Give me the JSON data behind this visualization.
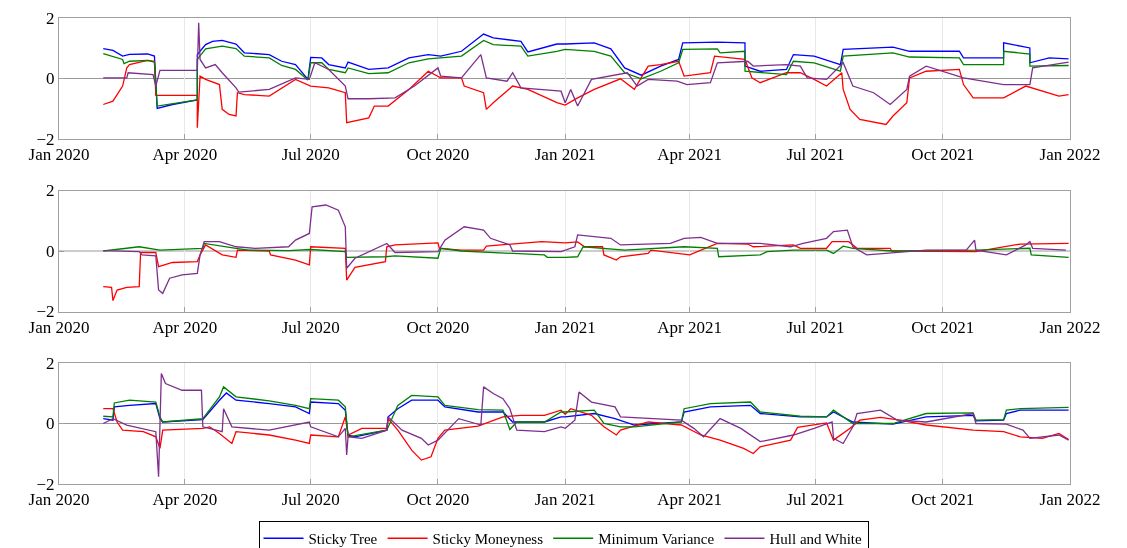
{
  "chart_data": [
    {
      "type": "line",
      "xlim": [
        "2020-01-01",
        "2022-01-01"
      ],
      "xticks": [
        {
          "value": "2020-01-01",
          "label": "Jan 2020"
        },
        {
          "value": "2020-04-01",
          "label": "Apr 2020"
        },
        {
          "value": "2020-07-01",
          "label": "Jul 2020"
        },
        {
          "value": "2020-10-01",
          "label": "Oct 2020"
        },
        {
          "value": "2021-01-01",
          "label": "Jan 2021"
        },
        {
          "value": "2021-04-01",
          "label": "Apr 2021"
        },
        {
          "value": "2021-07-01",
          "label": "Jul 2021"
        },
        {
          "value": "2021-10-01",
          "label": "Oct 2021"
        },
        {
          "value": "2022-01-01",
          "label": "Jan 2022"
        }
      ],
      "ylim": [
        -2,
        2
      ],
      "yticks": [
        -2,
        0,
        2
      ],
      "grid": "x",
      "legend": false,
      "ref_lines": [
        {
          "axis": "y",
          "value": 0,
          "color": "#999999"
        }
      ],
      "series": [
        {
          "color": "#0000ff",
          "x": [
            "2020-02-02",
            "2020-02-09",
            "2020-02-16",
            "2020-02-21",
            "2020-03-05",
            "2020-03-10",
            "2020-03-12",
            "2020-03-23",
            "2020-04-10",
            "2020-04-10",
            "2020-04-16",
            "2020-04-21",
            "2020-04-28",
            "2020-05-08",
            "2020-05-14",
            "2020-06-01",
            "2020-06-10",
            "2020-06-20",
            "2020-06-29",
            "2020-07-01",
            "2020-07-09",
            "2020-07-14",
            "2020-07-26",
            "2020-07-28",
            "2020-08-12",
            "2020-08-26",
            "2020-09-10",
            "2020-09-24",
            "2020-10-03",
            "2020-10-18",
            "2020-11-03",
            "2020-11-10",
            "2020-11-30",
            "2020-12-05",
            "2020-12-26",
            "2021-01-01",
            "2021-01-22",
            "2021-02-03",
            "2021-02-13",
            "2021-02-25",
            "2021-03-11",
            "2021-03-24",
            "2021-03-27",
            "2021-04-21",
            "2021-05-11",
            "2021-05-11",
            "2021-05-22",
            "2021-06-10",
            "2021-06-15",
            "2021-06-30",
            "2021-07-19",
            "2021-07-21",
            "2021-08-26",
            "2021-09-07",
            "2021-10-13",
            "2021-10-16",
            "2021-11-14",
            "2021-11-14",
            "2021-12-03",
            "2021-12-03",
            "2021-12-17",
            "2021-12-31"
          ],
          "values": [
            0.99,
            0.93,
            0.74,
            0.8,
            0.81,
            0.74,
            -0.99,
            -0.86,
            -0.71,
            0.79,
            1.12,
            1.23,
            1.26,
            1.14,
            0.85,
            0.79,
            0.57,
            0.46,
            -0.03,
            0.7,
            0.68,
            0.46,
            0.35,
            0.54,
            0.3,
            0.35,
            0.68,
            0.79,
            0.74,
            0.9,
            1.47,
            1.34,
            1.23,
            0.88,
            1.14,
            1.14,
            1.18,
            0.98,
            0.35,
            0.11,
            0.41,
            0.63,
            1.18,
            1.2,
            1.18,
            0.41,
            0.24,
            0.3,
            0.79,
            0.74,
            0.46,
            0.96,
            1.04,
            0.9,
            0.9,
            0.68,
            0.68,
            1.18,
            1.01,
            0.52,
            0.68,
            0.65
          ]
        },
        {
          "color": "#ff0000",
          "x": [
            "2020-02-02",
            "2020-02-09",
            "2020-02-16",
            "2020-02-19",
            "2020-02-21",
            "2020-03-05",
            "2020-03-10",
            "2020-03-11",
            "2020-04-10",
            "2020-04-10",
            "2020-04-12",
            "2020-04-16",
            "2020-04-26",
            "2020-04-28",
            "2020-05-03",
            "2020-05-08",
            "2020-05-09",
            "2020-05-14",
            "2020-06-01",
            "2020-06-20",
            "2020-07-01",
            "2020-07-14",
            "2020-07-26",
            "2020-07-27",
            "2020-08-12",
            "2020-08-16",
            "2020-08-26",
            "2020-09-10",
            "2020-09-24",
            "2020-10-03",
            "2020-10-18",
            "2020-10-20",
            "2020-11-03",
            "2020-11-05",
            "2020-11-10",
            "2020-11-24",
            "2020-12-05",
            "2020-12-26",
            "2021-01-01",
            "2021-01-10",
            "2021-01-22",
            "2021-02-10",
            "2021-02-20",
            "2021-03-02",
            "2021-03-11",
            "2021-03-24",
            "2021-03-28",
            "2021-04-16",
            "2021-04-19",
            "2021-05-11",
            "2021-05-16",
            "2021-05-22",
            "2021-06-10",
            "2021-06-20",
            "2021-06-30",
            "2021-07-09",
            "2021-07-20",
            "2021-07-21",
            "2021-07-26",
            "2021-08-02",
            "2021-08-21",
            "2021-08-26",
            "2021-09-05",
            "2021-09-07",
            "2021-09-19",
            "2021-10-13",
            "2021-10-16",
            "2021-10-23",
            "2021-11-14",
            "2021-11-30",
            "2021-12-24",
            "2021-12-31"
          ],
          "values": [
            -0.86,
            -0.75,
            -0.25,
            0.35,
            0.46,
            0.6,
            0.57,
            -0.56,
            -0.56,
            -1.63,
            0.08,
            -0.03,
            -0.2,
            -1.02,
            -1.19,
            -1.24,
            -0.47,
            -0.53,
            -0.58,
            -0.03,
            -0.25,
            -0.31,
            -0.47,
            -1.46,
            -1.3,
            -0.91,
            -0.91,
            -0.36,
            0.24,
            0.02,
            0.02,
            -0.25,
            -0.47,
            -1.02,
            -0.8,
            -0.25,
            -0.36,
            -0.8,
            -0.88,
            -0.64,
            -0.36,
            -0.01,
            -0.36,
            0.41,
            0.46,
            0.57,
            0.08,
            0.19,
            0.74,
            0.63,
            0.02,
            -0.14,
            0.19,
            0.19,
            -0.03,
            -0.25,
            0.19,
            -0.36,
            -1.02,
            -1.35,
            -1.52,
            -1.24,
            -0.8,
            0.02,
            0.24,
            0.3,
            -0.2,
            -0.64,
            -0.64,
            -0.25,
            -0.58,
            -0.53
          ]
        },
        {
          "color": "#008000",
          "x": [
            "2020-02-02",
            "2020-02-16",
            "2020-02-17",
            "2020-02-21",
            "2020-03-05",
            "2020-03-10",
            "2020-03-12",
            "2020-04-10",
            "2020-04-10",
            "2020-04-16",
            "2020-04-28",
            "2020-05-08",
            "2020-05-14",
            "2020-06-01",
            "2020-06-10",
            "2020-06-20",
            "2020-06-29",
            "2020-07-01",
            "2020-07-09",
            "2020-07-14",
            "2020-07-26",
            "2020-07-28",
            "2020-08-12",
            "2020-08-26",
            "2020-09-10",
            "2020-09-24",
            "2020-10-18",
            "2020-11-03",
            "2020-11-10",
            "2020-11-30",
            "2020-12-05",
            "2020-12-26",
            "2021-01-01",
            "2021-01-22",
            "2021-02-03",
            "2021-02-13",
            "2021-02-25",
            "2021-03-11",
            "2021-03-24",
            "2021-03-27",
            "2021-04-21",
            "2021-04-23",
            "2021-05-11",
            "2021-05-11",
            "2021-06-10",
            "2021-06-15",
            "2021-06-30",
            "2021-07-19",
            "2021-07-21",
            "2021-08-26",
            "2021-09-07",
            "2021-10-13",
            "2021-10-16",
            "2021-11-14",
            "2021-11-14",
            "2021-12-03",
            "2021-12-03",
            "2021-12-31"
          ],
          "values": [
            0.82,
            0.63,
            0.49,
            0.57,
            0.6,
            0.54,
            -0.91,
            -0.71,
            0.63,
            0.98,
            1.07,
            0.99,
            0.74,
            0.68,
            0.43,
            0.3,
            -0.05,
            0.52,
            0.52,
            0.3,
            0.19,
            0.35,
            0.16,
            0.19,
            0.52,
            0.65,
            0.74,
            1.26,
            1.12,
            1.07,
            0.74,
            0.9,
            0.96,
            0.9,
            0.74,
            0.19,
            -0.01,
            0.24,
            0.52,
            0.96,
            0.98,
            0.85,
            0.9,
            0.24,
            0.13,
            0.57,
            0.52,
            0.24,
            0.74,
            0.85,
            0.71,
            0.68,
            0.46,
            0.46,
            0.9,
            0.81,
            0.41,
            0.43
          ]
        },
        {
          "color": "#7e2f8e",
          "x": [
            "2020-02-02",
            "2020-02-19",
            "2020-02-20",
            "2020-03-09",
            "2020-03-11",
            "2020-03-14",
            "2020-04-10",
            "2020-04-11",
            "2020-04-12",
            "2020-04-16",
            "2020-04-23",
            "2020-04-28",
            "2020-05-08",
            "2020-05-10",
            "2020-06-01",
            "2020-06-20",
            "2020-06-30",
            "2020-07-04",
            "2020-07-14",
            "2020-07-26",
            "2020-07-28",
            "2020-08-12",
            "2020-08-31",
            "2020-09-14",
            "2020-10-01",
            "2020-10-03",
            "2020-10-18",
            "2020-10-30",
            "2020-11-01",
            "2020-11-05",
            "2020-11-20",
            "2020-11-24",
            "2020-11-30",
            "2020-12-29",
            "2021-01-01",
            "2021-01-05",
            "2021-01-10",
            "2021-01-20",
            "2021-02-15",
            "2021-02-22",
            "2021-03-02",
            "2021-03-23",
            "2021-03-30",
            "2021-04-16",
            "2021-04-21",
            "2021-05-13",
            "2021-05-17",
            "2021-06-10",
            "2021-06-20",
            "2021-06-25",
            "2021-07-09",
            "2021-07-21",
            "2021-07-28",
            "2021-08-12",
            "2021-08-24",
            "2021-09-05",
            "2021-09-07",
            "2021-09-19",
            "2021-10-16",
            "2021-11-14",
            "2021-12-03",
            "2021-12-05",
            "2021-12-31"
          ],
          "values": [
            0.02,
            0.02,
            0.19,
            0.13,
            -0.25,
            0.27,
            0.27,
            1.84,
            0.63,
            0.35,
            0.46,
            0.19,
            -0.31,
            -0.45,
            -0.36,
            0.02,
            -0.03,
            0.52,
            0.3,
            -0.25,
            -0.67,
            -0.67,
            -0.64,
            -0.25,
            0.35,
            0.08,
            0.02,
            0.68,
            0.79,
            0.02,
            -0.09,
            0.19,
            -0.31,
            -0.42,
            -0.8,
            -0.36,
            -0.91,
            -0.03,
            0.19,
            -0.25,
            -0.03,
            -0.09,
            -0.2,
            -0.14,
            0.52,
            0.57,
            0.41,
            0.46,
            0.41,
            0.02,
            -0.03,
            0.52,
            -0.25,
            -0.47,
            -0.86,
            -0.36,
            0.08,
            0.41,
            0.02,
            -0.2,
            -0.2,
            0.35,
            0.54
          ]
        }
      ]
    },
    {
      "type": "line",
      "xlim": [
        "2020-01-01",
        "2022-01-01"
      ],
      "xticks": [
        {
          "value": "2020-01-01",
          "label": "Jan 2020"
        },
        {
          "value": "2020-04-01",
          "label": "Apr 2020"
        },
        {
          "value": "2020-07-01",
          "label": "Jul 2020"
        },
        {
          "value": "2020-10-01",
          "label": "Oct 2020"
        },
        {
          "value": "2021-01-01",
          "label": "Jan 2021"
        },
        {
          "value": "2021-04-01",
          "label": "Apr 2021"
        },
        {
          "value": "2021-07-01",
          "label": "Jul 2021"
        },
        {
          "value": "2021-10-01",
          "label": "Oct 2021"
        },
        {
          "value": "2022-01-01",
          "label": "Jan 2022"
        }
      ],
      "ylim": [
        -2,
        2
      ],
      "yticks": [
        -2,
        0,
        2
      ],
      "grid": "x",
      "legend": false,
      "ref_lines": [
        {
          "axis": "y",
          "value": 0,
          "color": "#999999"
        }
      ],
      "series": [
        {
          "color": "#ff0000",
          "x": [
            "2020-02-02",
            "2020-02-08",
            "2020-02-09",
            "2020-02-12",
            "2020-02-19",
            "2020-02-28",
            "2020-02-29",
            "2020-03-11",
            "2020-03-13",
            "2020-03-23",
            "2020-04-10",
            "2020-04-12",
            "2020-04-16",
            "2020-04-28",
            "2020-05-08",
            "2020-05-09",
            "2020-06-01",
            "2020-06-02",
            "2020-06-20",
            "2020-06-30",
            "2020-07-01",
            "2020-07-26",
            "2020-07-27",
            "2020-08-02",
            "2020-08-24",
            "2020-08-25",
            "2020-08-31",
            "2020-10-01",
            "2020-10-02",
            "2020-10-18",
            "2020-11-03",
            "2020-11-05",
            "2020-12-15",
            "2021-01-01",
            "2021-01-10",
            "2021-01-15",
            "2021-01-28",
            "2021-01-29",
            "2021-02-07",
            "2021-02-10",
            "2021-03-02",
            "2021-03-04",
            "2021-04-01",
            "2021-04-21",
            "2021-05-13",
            "2021-05-17",
            "2021-06-15",
            "2021-06-20",
            "2021-07-09",
            "2021-07-13",
            "2021-07-25",
            "2021-07-31",
            "2021-08-24",
            "2021-08-25",
            "2021-10-25",
            "2021-11-26",
            "2021-12-31"
          ],
          "values": [
            -1.18,
            -1.2,
            -1.64,
            -1.29,
            -1.2,
            -1.18,
            -0.05,
            -0.05,
            -0.52,
            -0.38,
            -0.35,
            -0.13,
            0.2,
            -0.13,
            -0.21,
            0.03,
            0.0,
            -0.13,
            -0.3,
            -0.46,
            0.14,
            0.09,
            -0.96,
            -0.54,
            -0.35,
            0.14,
            0.2,
            0.27,
            0.09,
            0.03,
            0.03,
            0.16,
            0.31,
            0.27,
            0.3,
            0.14,
            0.14,
            -0.13,
            -0.3,
            -0.19,
            -0.08,
            0.03,
            -0.13,
            0.25,
            0.23,
            0.14,
            0.2,
            0.09,
            0.09,
            0.31,
            0.31,
            0.09,
            0.09,
            0.0,
            -0.02,
            0.23,
            0.25
          ]
        },
        {
          "color": "#008000",
          "x": [
            "2020-02-02",
            "2020-02-28",
            "2020-03-14",
            "2020-04-14",
            "2020-04-15",
            "2020-05-08",
            "2020-05-17",
            "2020-06-15",
            "2020-07-01",
            "2020-07-26",
            "2020-07-27",
            "2020-08-24",
            "2020-08-31",
            "2020-10-01",
            "2020-10-03",
            "2020-10-18",
            "2020-12-17",
            "2020-12-19",
            "2021-01-01",
            "2021-01-10",
            "2021-01-14",
            "2021-02-13",
            "2021-03-28",
            "2021-04-21",
            "2021-04-22",
            "2021-05-22",
            "2021-05-27",
            "2021-06-15",
            "2021-07-09",
            "2021-07-14",
            "2021-07-21",
            "2021-07-28",
            "2021-08-26",
            "2021-10-25",
            "2021-12-03",
            "2021-12-04",
            "2021-12-31"
          ],
          "values": [
            0.0,
            0.14,
            0.03,
            0.09,
            0.25,
            0.09,
            0.03,
            0.01,
            0.05,
            -0.02,
            -0.21,
            -0.19,
            -0.16,
            -0.24,
            0.09,
            0.0,
            -0.13,
            -0.21,
            -0.21,
            -0.19,
            0.14,
            0.03,
            0.14,
            0.09,
            -0.19,
            -0.13,
            -0.02,
            0.03,
            0.03,
            -0.08,
            0.16,
            0.09,
            0.0,
            0.03,
            0.09,
            -0.13,
            -0.21
          ]
        },
        {
          "color": "#7e2f8e",
          "x": [
            "2020-02-02",
            "2020-02-28",
            "2020-03-01",
            "2020-03-11",
            "2020-03-13",
            "2020-03-16",
            "2020-03-21",
            "2020-03-30",
            "2020-04-10",
            "2020-04-12",
            "2020-04-15",
            "2020-04-26",
            "2020-05-08",
            "2020-05-22",
            "2020-06-15",
            "2020-06-20",
            "2020-06-30",
            "2020-07-02",
            "2020-07-12",
            "2020-07-21",
            "2020-07-26",
            "2020-07-27",
            "2020-08-02",
            "2020-08-25",
            "2020-08-31",
            "2020-10-01",
            "2020-10-06",
            "2020-10-20",
            "2020-11-03",
            "2020-11-08",
            "2020-11-22",
            "2020-11-24",
            "2020-12-29",
            "2021-01-08",
            "2021-01-10",
            "2021-02-03",
            "2021-02-10",
            "2021-03-18",
            "2021-03-28",
            "2021-04-09",
            "2021-04-21",
            "2021-05-22",
            "2021-06-13",
            "2021-06-22",
            "2021-07-09",
            "2021-07-14",
            "2021-07-24",
            "2021-07-28",
            "2021-08-07",
            "2021-09-19",
            "2021-10-18",
            "2021-10-24",
            "2021-10-25",
            "2021-11-16",
            "2021-11-30",
            "2021-12-03",
            "2021-12-05",
            "2021-12-29"
          ],
          "values": [
            0.01,
            -0.02,
            -0.13,
            -0.16,
            -1.29,
            -1.4,
            -0.9,
            -0.79,
            -0.74,
            -0.13,
            0.31,
            0.31,
            0.14,
            0.09,
            0.14,
            0.36,
            0.58,
            1.46,
            1.52,
            1.35,
            0.8,
            -0.57,
            -0.24,
            0.25,
            -0.05,
            -0.02,
            0.36,
            0.8,
            0.69,
            0.42,
            0.2,
            0.0,
            -0.02,
            0.14,
            0.53,
            0.42,
            0.2,
            0.25,
            0.42,
            0.45,
            0.25,
            0.25,
            0.14,
            0.25,
            0.42,
            0.64,
            0.69,
            0.14,
            -0.13,
            0.03,
            0.03,
            0.36,
            0.03,
            -0.13,
            0.2,
            0.31,
            0.09,
            0.03
          ]
        }
      ]
    },
    {
      "type": "line",
      "xlim": [
        "2020-01-01",
        "2022-01-01"
      ],
      "xticks": [
        {
          "value": "2020-01-01",
          "label": "Jan 2020"
        },
        {
          "value": "2020-04-01",
          "label": "Apr 2020"
        },
        {
          "value": "2020-07-01",
          "label": "Jul 2020"
        },
        {
          "value": "2020-10-01",
          "label": "Oct 2020"
        },
        {
          "value": "2021-01-01",
          "label": "Jan 2021"
        },
        {
          "value": "2021-04-01",
          "label": "Apr 2021"
        },
        {
          "value": "2021-07-01",
          "label": "Jul 2021"
        },
        {
          "value": "2021-10-01",
          "label": "Oct 2021"
        },
        {
          "value": "2022-01-01",
          "label": "Jan 2022"
        }
      ],
      "ylim": [
        -2,
        2
      ],
      "yticks": [
        -2,
        0,
        2
      ],
      "grid": "x",
      "legend": "bottom",
      "ref_lines": [
        {
          "axis": "y",
          "value": 0,
          "color": "#999999"
        }
      ],
      "series": [
        {
          "name": "Sticky Tree",
          "color": "#0000ff",
          "x": [
            "2020-02-02",
            "2020-02-09",
            "2020-02-10",
            "2020-02-21",
            "2020-03-11",
            "2020-03-14",
            "2020-03-16",
            "2020-04-14",
            "2020-04-26",
            "2020-05-01",
            "2020-05-08",
            "2020-06-01",
            "2020-06-20",
            "2020-06-30",
            "2020-07-01",
            "2020-07-21",
            "2020-07-26",
            "2020-07-28",
            "2020-08-02",
            "2020-08-25",
            "2020-08-26",
            "2020-09-02",
            "2020-09-12",
            "2020-10-01",
            "2020-10-06",
            "2020-10-30",
            "2020-11-17",
            "2020-11-24",
            "2020-12-17",
            "2020-12-29",
            "2021-01-01",
            "2021-01-22",
            "2021-02-06",
            "2021-02-20",
            "2021-03-26",
            "2021-03-28",
            "2021-04-16",
            "2021-05-15",
            "2021-05-22",
            "2021-06-20",
            "2021-07-09",
            "2021-07-14",
            "2021-07-28",
            "2021-08-26",
            "2021-09-19",
            "2021-10-23",
            "2021-10-25",
            "2021-11-14",
            "2021-11-16",
            "2021-11-26",
            "2021-12-31"
          ],
          "values": [
            0.16,
            0.11,
            0.55,
            0.6,
            0.66,
            0.16,
            0.05,
            0.13,
            0.77,
            1.01,
            0.77,
            0.66,
            0.55,
            0.33,
            0.71,
            0.66,
            0.44,
            -0.38,
            -0.44,
            -0.22,
            0.22,
            0.49,
            0.77,
            0.77,
            0.55,
            0.38,
            0.38,
            0.05,
            0.05,
            0.22,
            0.22,
            0.33,
            0.16,
            -0.05,
            0.05,
            0.38,
            0.55,
            0.6,
            0.33,
            0.22,
            0.22,
            0.38,
            0.05,
            -0.02,
            0.22,
            0.27,
            0.09,
            0.11,
            0.33,
            0.44,
            0.44
          ]
        },
        {
          "name": "Sticky Moneyness",
          "color": "#ff0000",
          "x": [
            "2020-02-02",
            "2020-02-09",
            "2020-02-12",
            "2020-02-16",
            "2020-03-02",
            "2020-03-11",
            "2020-03-14",
            "2020-03-16",
            "2020-04-14",
            "2020-04-19",
            "2020-04-26",
            "2020-05-05",
            "2020-05-08",
            "2020-06-01",
            "2020-06-20",
            "2020-06-30",
            "2020-07-01",
            "2020-07-21",
            "2020-07-26",
            "2020-07-28",
            "2020-08-07",
            "2020-08-25",
            "2020-08-26",
            "2020-09-02",
            "2020-09-12",
            "2020-09-19",
            "2020-09-26",
            "2020-10-01",
            "2020-10-06",
            "2020-10-30",
            "2020-11-17",
            "2020-11-30",
            "2020-12-17",
            "2020-12-29",
            "2021-01-01",
            "2021-01-05",
            "2021-01-20",
            "2021-01-29",
            "2021-02-07",
            "2021-02-10",
            "2021-03-02",
            "2021-03-26",
            "2021-04-09",
            "2021-04-23",
            "2021-05-10",
            "2021-05-17",
            "2021-05-22",
            "2021-06-13",
            "2021-06-18",
            "2021-07-09",
            "2021-07-14",
            "2021-07-26",
            "2021-08-02",
            "2021-08-17",
            "2021-08-31",
            "2021-09-19",
            "2021-10-23",
            "2021-11-14",
            "2021-11-26",
            "2021-12-12",
            "2021-12-24",
            "2021-12-31"
          ],
          "values": [
            0.49,
            0.49,
            0.05,
            -0.22,
            -0.27,
            -0.44,
            -0.82,
            -0.22,
            -0.16,
            -0.11,
            -0.33,
            -0.66,
            -0.27,
            -0.38,
            -0.55,
            -0.66,
            -0.38,
            -0.44,
            0.22,
            -0.38,
            -0.16,
            -0.16,
            0.16,
            -0.22,
            -0.88,
            -1.21,
            -1.1,
            -0.49,
            -0.22,
            -0.09,
            0.22,
            0.27,
            0.27,
            0.44,
            0.3,
            0.49,
            0.27,
            -0.11,
            -0.38,
            -0.22,
            0.05,
            -0.05,
            -0.38,
            -0.55,
            -0.82,
            -0.99,
            -0.77,
            -0.55,
            -0.13,
            0.02,
            -0.55,
            -0.16,
            0.11,
            0.2,
            0.11,
            -0.05,
            -0.22,
            -0.27,
            -0.44,
            -0.49,
            -0.33,
            -0.53
          ]
        },
        {
          "name": "Minimum Variance",
          "color": "#008000",
          "x": [
            "2020-02-02",
            "2020-02-09",
            "2020-02-10",
            "2020-02-21",
            "2020-03-11",
            "2020-03-14",
            "2020-03-16",
            "2020-04-14",
            "2020-04-26",
            "2020-04-29",
            "2020-05-08",
            "2020-06-01",
            "2020-06-20",
            "2020-06-30",
            "2020-07-01",
            "2020-07-21",
            "2020-07-26",
            "2020-07-28",
            "2020-08-25",
            "2020-09-02",
            "2020-09-12",
            "2020-10-01",
            "2020-10-06",
            "2020-10-30",
            "2020-11-17",
            "2020-11-22",
            "2020-11-27",
            "2020-12-17",
            "2020-12-29",
            "2021-01-01",
            "2021-01-22",
            "2021-01-29",
            "2021-02-10",
            "2021-02-20",
            "2021-03-26",
            "2021-03-28",
            "2021-04-16",
            "2021-05-15",
            "2021-05-22",
            "2021-06-20",
            "2021-07-09",
            "2021-07-14",
            "2021-07-28",
            "2021-08-26",
            "2021-09-19",
            "2021-10-23",
            "2021-10-25",
            "2021-11-14",
            "2021-11-16",
            "2021-11-26",
            "2021-12-31"
          ],
          "values": [
            0.24,
            0.22,
            0.68,
            0.77,
            0.71,
            0.22,
            0.05,
            0.16,
            0.88,
            1.21,
            0.88,
            0.75,
            0.6,
            0.49,
            0.82,
            0.77,
            0.55,
            -0.44,
            -0.22,
            0.6,
            0.93,
            0.88,
            0.6,
            0.46,
            0.44,
            -0.2,
            0.05,
            0.05,
            0.38,
            0.38,
            0.44,
            0.0,
            -0.11,
            -0.11,
            0.05,
            0.49,
            0.66,
            0.71,
            0.38,
            0.24,
            0.22,
            0.44,
            0.0,
            0.0,
            0.33,
            0.35,
            0.11,
            0.13,
            0.44,
            0.49,
            0.53
          ]
        },
        {
          "name": "Hull and White",
          "color": "#7e2f8e",
          "x": [
            "2020-02-02",
            "2020-02-09",
            "2020-02-19",
            "2020-03-11",
            "2020-03-13",
            "2020-03-15",
            "2020-03-18",
            "2020-03-30",
            "2020-04-13",
            "2020-04-14",
            "2020-04-28",
            "2020-04-29",
            "2020-05-05",
            "2020-06-01",
            "2020-06-30",
            "2020-07-01",
            "2020-07-21",
            "2020-07-26",
            "2020-07-27",
            "2020-07-28",
            "2020-08-07",
            "2020-08-25",
            "2020-08-26",
            "2020-09-05",
            "2020-09-19",
            "2020-09-24",
            "2020-10-01",
            "2020-10-16",
            "2020-11-01",
            "2020-11-03",
            "2020-11-10",
            "2020-11-17",
            "2020-11-22",
            "2020-11-27",
            "2020-12-17",
            "2020-12-29",
            "2021-01-01",
            "2021-01-08",
            "2021-01-11",
            "2021-01-20",
            "2021-02-06",
            "2021-02-10",
            "2021-03-26",
            "2021-04-04",
            "2021-04-11",
            "2021-04-23",
            "2021-05-08",
            "2021-05-22",
            "2021-06-15",
            "2021-06-30",
            "2021-07-13",
            "2021-07-14",
            "2021-07-21",
            "2021-07-28",
            "2021-07-31",
            "2021-08-17",
            "2021-08-29",
            "2021-09-19",
            "2021-10-23",
            "2021-10-25",
            "2021-11-16",
            "2021-11-28",
            "2021-12-03",
            "2021-12-24",
            "2021-12-31"
          ],
          "values": [
            0.0,
            0.16,
            -0.05,
            -0.27,
            -1.76,
            1.65,
            1.32,
            1.1,
            1.1,
            -0.11,
            -0.27,
            0.49,
            -0.11,
            -0.22,
            0.05,
            -0.11,
            -0.44,
            -0.16,
            -1.04,
            -0.44,
            -0.49,
            -0.22,
            0.22,
            -0.22,
            -0.49,
            -0.71,
            -0.55,
            0.16,
            -0.05,
            1.21,
            0.99,
            0.82,
            0.49,
            -0.22,
            -0.27,
            -0.11,
            -0.16,
            0.11,
            1.04,
            0.71,
            0.55,
            0.22,
            0.11,
            -0.16,
            -0.44,
            0.16,
            -0.16,
            -0.6,
            -0.38,
            -0.16,
            0.05,
            -0.49,
            -0.66,
            -0.11,
            0.33,
            0.44,
            0.11,
            0.05,
            0.33,
            0.0,
            -0.02,
            -0.22,
            -0.49,
            -0.38,
            -0.55
          ]
        }
      ]
    }
  ]
}
